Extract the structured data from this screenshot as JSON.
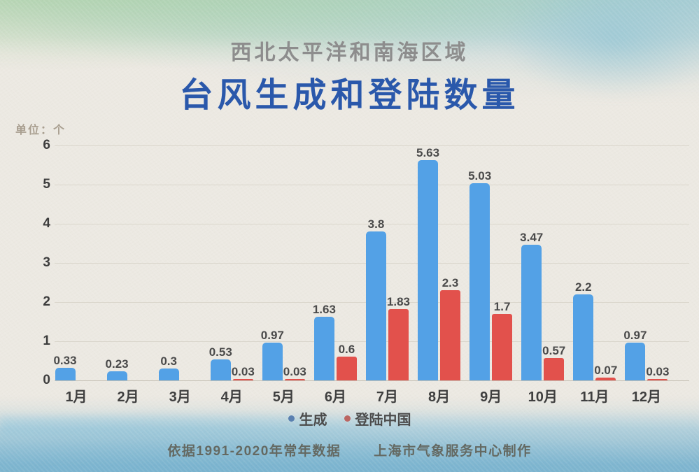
{
  "header": {
    "subtitle": "西北太平洋和南海区域",
    "title": "台风生成和登陆数量"
  },
  "unit_label": "单位：个",
  "legend": [
    {
      "label": "生成",
      "dot_color": "#5a80b0"
    },
    {
      "label": "登陆中国",
      "dot_color": "#bb6662"
    }
  ],
  "footer": {
    "source": "依据1991-2020年常年数据",
    "credit": "上海市气象服务中心制作"
  },
  "colors": {
    "generated_bar": "#53a1e6",
    "landfall_bar": "#e2514c",
    "title_blue": "#2a58ab",
    "subtitle_gray": "#8d8d8d"
  },
  "chart_data": {
    "type": "bar",
    "title": "台风生成和登陆数量",
    "subtitle": "西北太平洋和南海区域",
    "unit": "个",
    "categories": [
      "1月",
      "2月",
      "3月",
      "4月",
      "5月",
      "6月",
      "7月",
      "8月",
      "9月",
      "10月",
      "11月",
      "12月"
    ],
    "series": [
      {
        "name": "生成",
        "color": "#53a1e6",
        "values": [
          0.33,
          0.23,
          0.3,
          0.53,
          0.97,
          1.63,
          3.8,
          5.63,
          5.03,
          3.47,
          2.2,
          0.97
        ]
      },
      {
        "name": "登陆中国",
        "color": "#e2514c",
        "values": [
          null,
          null,
          null,
          0.03,
          0.03,
          0.6,
          1.83,
          2.3,
          1.7,
          0.57,
          0.07,
          0.03
        ]
      }
    ],
    "ylim": [
      0,
      6
    ],
    "y_ticks": [
      0,
      1,
      2,
      3,
      4,
      5,
      6
    ],
    "grid": true,
    "legend_position": "bottom",
    "value_labels": true
  }
}
